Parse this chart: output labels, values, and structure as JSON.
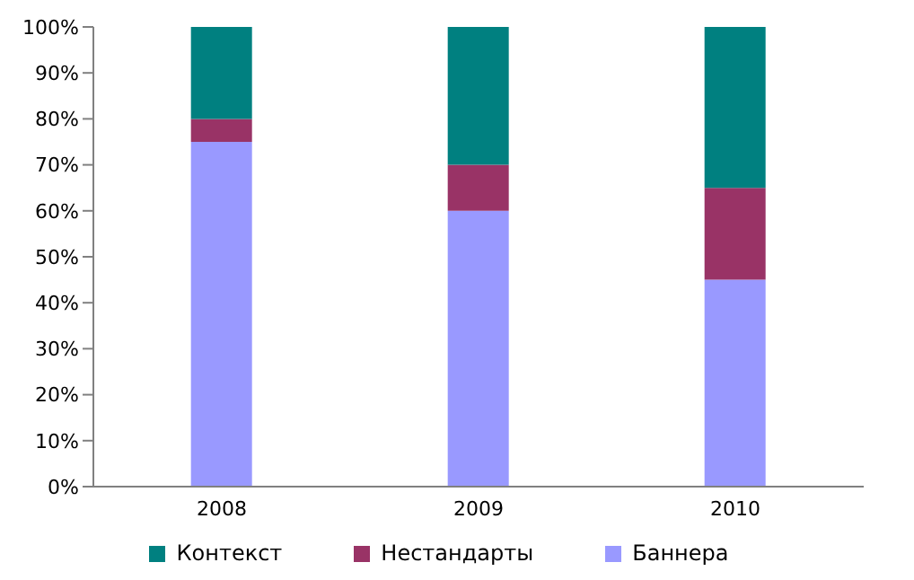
{
  "chart_data": {
    "type": "bar",
    "stacked": true,
    "categories": [
      "2008",
      "2009",
      "2010"
    ],
    "series": [
      {
        "name": "Баннера",
        "color": "#9999ff",
        "values": [
          75,
          60,
          45
        ]
      },
      {
        "name": "Нестандарты",
        "color": "#993366",
        "values": [
          5,
          10,
          20
        ]
      },
      {
        "name": "Контекст",
        "color": "#008080",
        "values": [
          20,
          30,
          35
        ]
      }
    ],
    "ylim": [
      0,
      100
    ],
    "yticks": [
      {
        "value": 0,
        "label": "0%"
      },
      {
        "value": 10,
        "label": "10%"
      },
      {
        "value": 20,
        "label": "20%"
      },
      {
        "value": 30,
        "label": "30%"
      },
      {
        "value": 40,
        "label": "40%"
      },
      {
        "value": 50,
        "label": "50%"
      },
      {
        "value": 60,
        "label": "60%"
      },
      {
        "value": 70,
        "label": "70%"
      },
      {
        "value": 80,
        "label": "80%"
      },
      {
        "value": 90,
        "label": "90%"
      },
      {
        "value": 100,
        "label": "100%"
      }
    ],
    "grid": false,
    "legend": "bottom"
  }
}
